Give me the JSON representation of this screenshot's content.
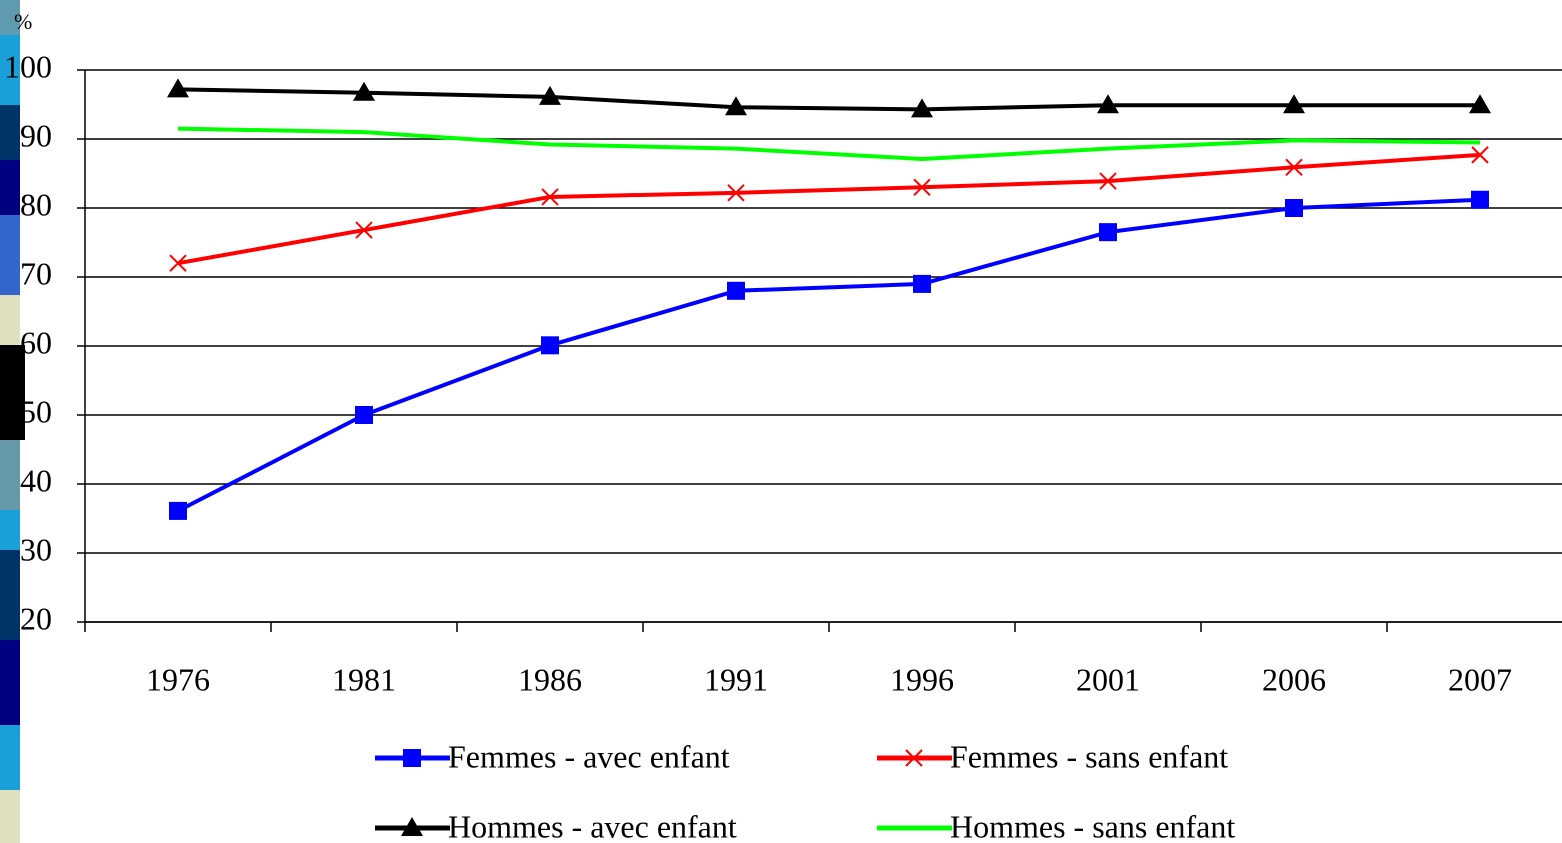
{
  "chart_data": {
    "type": "line",
    "y_label": "%",
    "categories": [
      "1976",
      "1981",
      "1986",
      "1991",
      "1996",
      "2001",
      "2006",
      "2007"
    ],
    "series": [
      {
        "name": "Femmes - avec enfant",
        "color": "#0000ff",
        "marker": "square",
        "values": [
          36.1,
          50,
          60.1,
          68,
          69,
          76.5,
          80,
          81.2
        ]
      },
      {
        "name": "Femmes - sans enfant",
        "color": "#ff0000",
        "marker": "x",
        "values": [
          72,
          76.8,
          81.6,
          82.2,
          83,
          83.9,
          85.9,
          87.7
        ]
      },
      {
        "name": "Hommes - avec enfant",
        "color": "#000000",
        "marker": "triangle",
        "values": [
          97.2,
          96.7,
          96.1,
          94.6,
          94.3,
          94.9,
          94.9,
          94.9
        ]
      },
      {
        "name": "Hommes - sans enfant",
        "color": "#00ff00",
        "marker": "none",
        "values": [
          91.5,
          91,
          89.2,
          88.6,
          87.1,
          88.6,
          89.8,
          89.5
        ]
      }
    ],
    "ylim": [
      20,
      100
    ],
    "yticks": [
      20,
      30,
      40,
      50,
      60,
      70,
      80,
      90,
      100
    ],
    "grid": true,
    "legend": "bottom"
  }
}
